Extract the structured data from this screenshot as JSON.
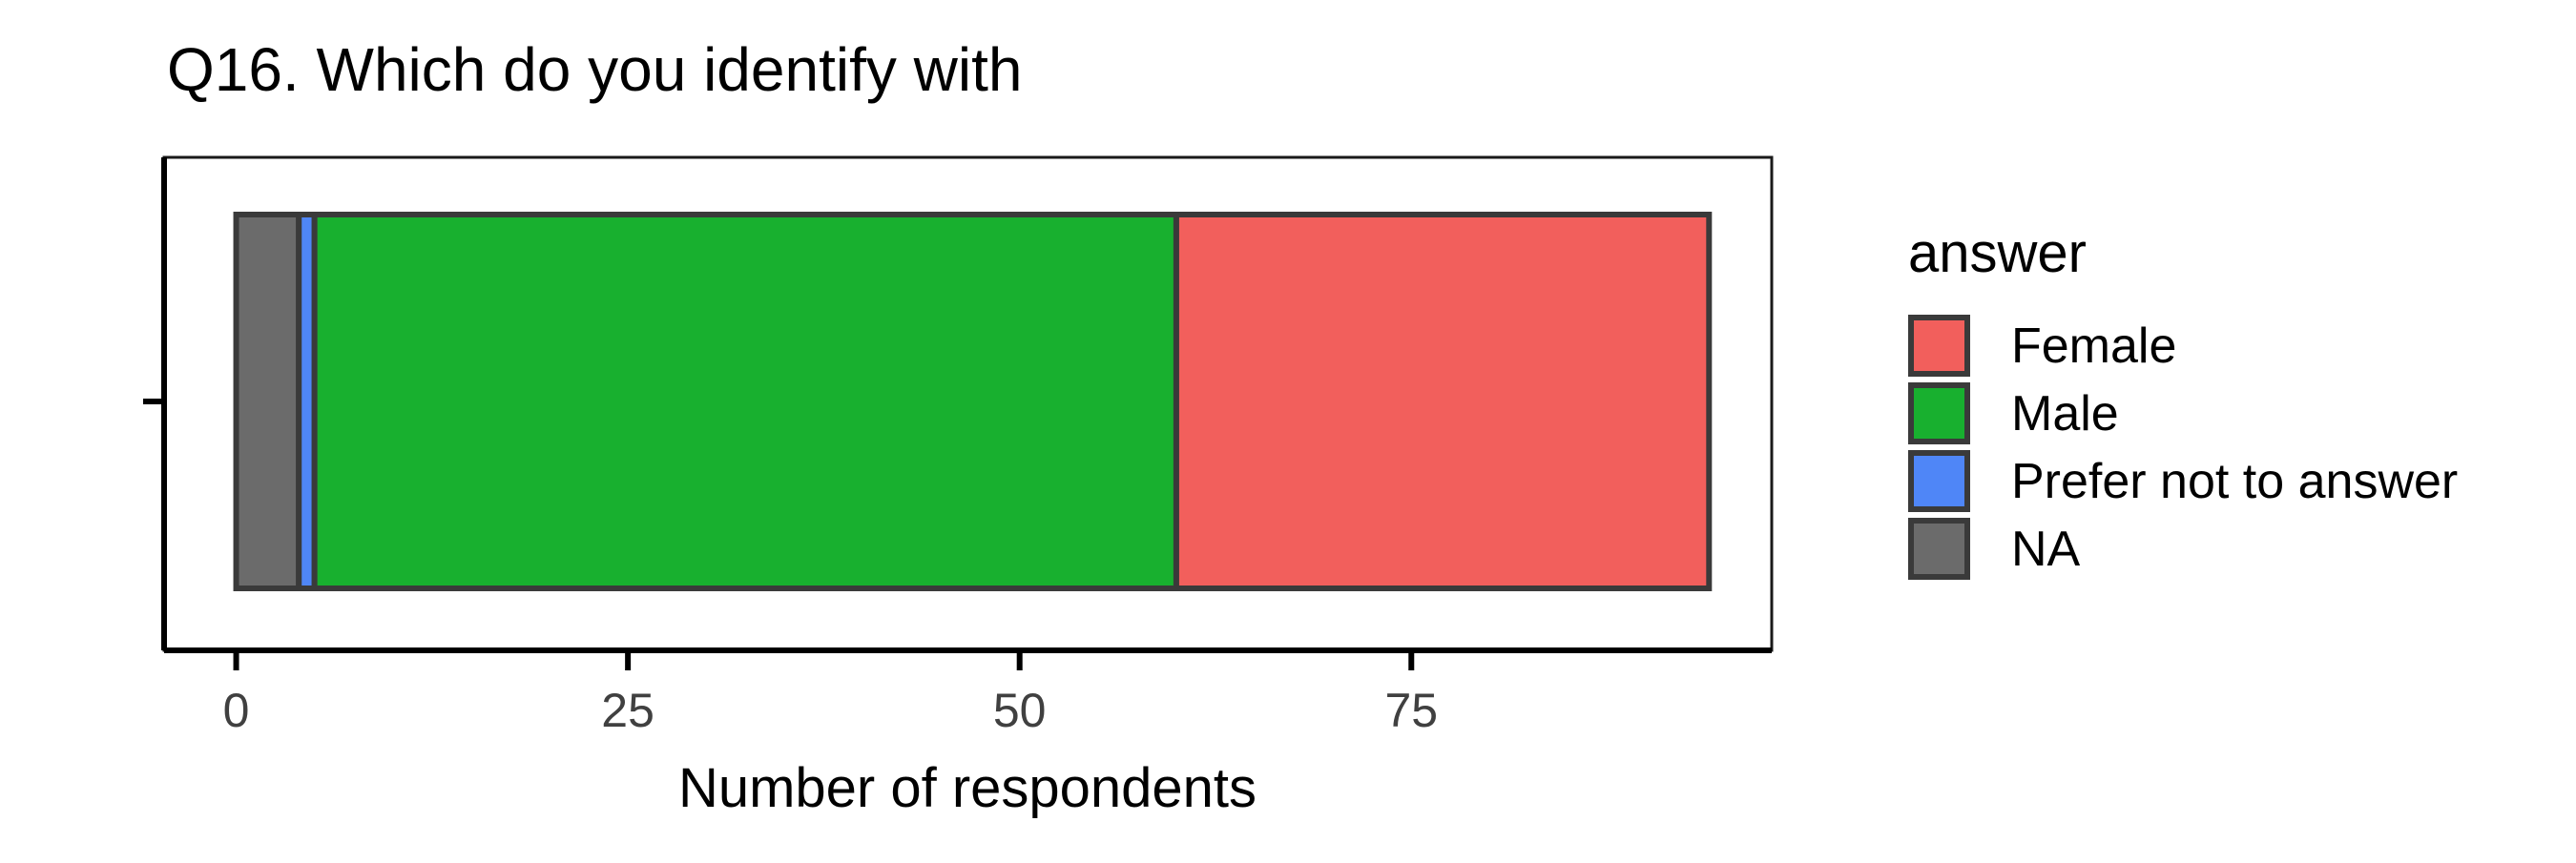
{
  "chart_data": {
    "type": "bar",
    "orientation": "horizontal",
    "stacked": true,
    "title": "Q16. Which do you identify with",
    "xlabel": "Number of respondents",
    "ylabel": "",
    "xlim": [
      -4.6,
      98
    ],
    "x_ticks": [
      0,
      25,
      50,
      75
    ],
    "x_tick_labels": [
      "0",
      "25",
      "50",
      "75"
    ],
    "grid": false,
    "legend": {
      "title": "answer",
      "position": "right",
      "entries": [
        "Female",
        "Male",
        "Prefer not to answer",
        "NA"
      ]
    },
    "segments_stack_order_from_left": [
      {
        "name": "NA",
        "value": 4,
        "color": "#6b6b6b"
      },
      {
        "name": "Prefer not to answer",
        "value": 1,
        "color": "#4f86f7"
      },
      {
        "name": "Male",
        "value": 55,
        "color": "#18b02f"
      },
      {
        "name": "Female",
        "value": 34,
        "color": "#f25f5c"
      }
    ],
    "total": 94
  },
  "colors": {
    "female": "#f25f5c",
    "male": "#18b02f",
    "prefer_not": "#4f86f7",
    "na": "#6b6b6b",
    "outline": "#3a3a3a"
  }
}
